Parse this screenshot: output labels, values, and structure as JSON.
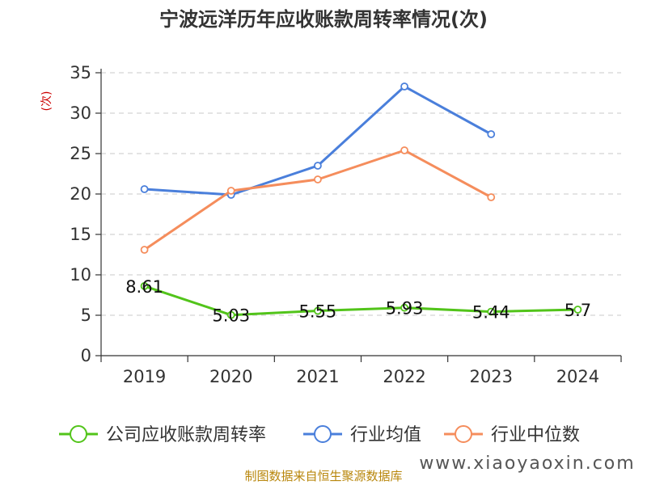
{
  "chart_data": {
    "type": "line",
    "title": "宁波远洋历年应收账款周转率情况(次)",
    "ylabel": "(次)",
    "xlabel": "",
    "categories": [
      "2019",
      "2020",
      "2021",
      "2022",
      "2023",
      "2024"
    ],
    "ylim": [
      0,
      35
    ],
    "yticks": [
      0,
      5,
      10,
      15,
      20,
      25,
      30,
      35
    ],
    "grid": true,
    "legend_position": "bottom",
    "series": [
      {
        "name": "公司应收账款周转率",
        "color": "#52c41a",
        "values": [
          8.61,
          5.03,
          5.55,
          5.93,
          5.44,
          5.7
        ],
        "labels": [
          "8.61",
          "5.03",
          "5.55",
          "5.93",
          "5.44",
          "5.7"
        ]
      },
      {
        "name": "行业均值",
        "color": "#4a7fdb",
        "values": [
          20.6,
          19.9,
          23.5,
          33.3,
          27.4,
          null
        ]
      },
      {
        "name": "行业中位数",
        "color": "#f58d5c",
        "values": [
          13.1,
          20.4,
          21.8,
          25.4,
          19.6,
          null
        ]
      }
    ]
  },
  "footer": {
    "source": "制图数据来自恒生聚源数据库",
    "watermark": "www.xiaoyaoxin.com"
  }
}
